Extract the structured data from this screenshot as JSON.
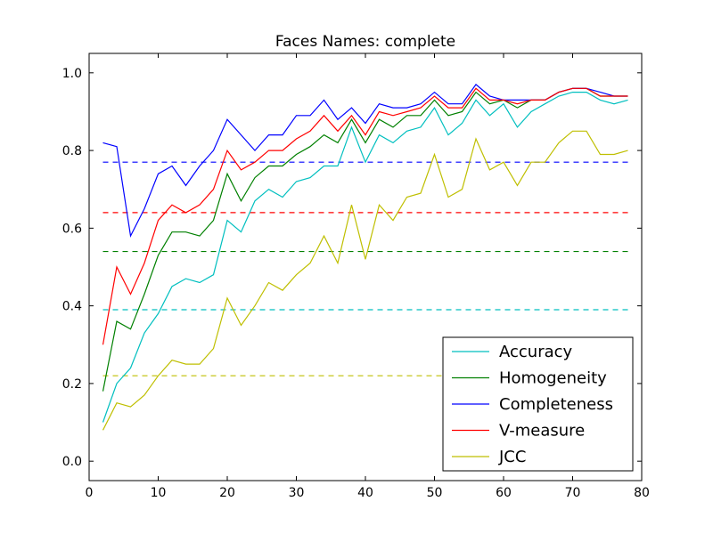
{
  "chart_data": {
    "type": "line",
    "title": "Faces Names: complete",
    "xlabel": "",
    "ylabel": "",
    "xlim": [
      0,
      80
    ],
    "ylim": [
      -0.05,
      1.05
    ],
    "xticks": [
      0,
      10,
      20,
      30,
      40,
      50,
      60,
      70,
      80
    ],
    "yticks": [
      0.0,
      0.2,
      0.4,
      0.6,
      0.8,
      1.0
    ],
    "xtick_labels": [
      "0",
      "10",
      "20",
      "30",
      "40",
      "50",
      "60",
      "70",
      "80"
    ],
    "ytick_labels": [
      "0.0",
      "0.2",
      "0.4",
      "0.6",
      "0.8",
      "1.0"
    ],
    "grid": false,
    "legend_position": "bottom-right",
    "x": [
      2,
      4,
      6,
      8,
      10,
      12,
      14,
      16,
      18,
      20,
      22,
      24,
      26,
      28,
      30,
      32,
      34,
      36,
      38,
      40,
      42,
      44,
      46,
      48,
      50,
      52,
      54,
      56,
      58,
      60,
      62,
      64,
      66,
      68,
      70,
      72,
      74,
      76,
      78
    ],
    "series": [
      {
        "name": "Accuracy",
        "color": "#00bfbf",
        "values": [
          0.1,
          0.2,
          0.24,
          0.33,
          0.38,
          0.45,
          0.47,
          0.46,
          0.48,
          0.62,
          0.59,
          0.67,
          0.7,
          0.68,
          0.72,
          0.73,
          0.76,
          0.76,
          0.86,
          0.77,
          0.84,
          0.82,
          0.85,
          0.86,
          0.91,
          0.84,
          0.87,
          0.93,
          0.89,
          0.92,
          0.86,
          0.9,
          0.92,
          0.94,
          0.95,
          0.95,
          0.93,
          0.92,
          0.93
        ],
        "baseline": 0.39
      },
      {
        "name": "Homogeneity",
        "color": "#008000",
        "values": [
          0.18,
          0.36,
          0.34,
          0.43,
          0.53,
          0.59,
          0.59,
          0.58,
          0.62,
          0.74,
          0.67,
          0.73,
          0.76,
          0.76,
          0.79,
          0.81,
          0.84,
          0.82,
          0.88,
          0.82,
          0.88,
          0.86,
          0.89,
          0.89,
          0.93,
          0.89,
          0.9,
          0.95,
          0.92,
          0.93,
          0.91,
          0.93,
          0.93,
          0.95,
          0.96,
          0.96,
          0.94,
          0.94,
          0.94
        ],
        "baseline": 0.54
      },
      {
        "name": "Completeness",
        "color": "#0000ff",
        "values": [
          0.82,
          0.81,
          0.58,
          0.65,
          0.74,
          0.76,
          0.71,
          0.76,
          0.8,
          0.88,
          0.84,
          0.8,
          0.84,
          0.84,
          0.89,
          0.89,
          0.93,
          0.88,
          0.91,
          0.87,
          0.92,
          0.91,
          0.91,
          0.92,
          0.95,
          0.92,
          0.92,
          0.97,
          0.94,
          0.93,
          0.93,
          0.93,
          0.93,
          0.95,
          0.96,
          0.96,
          0.95,
          0.94,
          0.94
        ],
        "baseline": 0.77
      },
      {
        "name": "V-measure",
        "color": "#ff0000",
        "values": [
          0.3,
          0.5,
          0.43,
          0.51,
          0.62,
          0.66,
          0.64,
          0.66,
          0.7,
          0.8,
          0.75,
          0.77,
          0.8,
          0.8,
          0.83,
          0.85,
          0.89,
          0.85,
          0.89,
          0.84,
          0.9,
          0.89,
          0.9,
          0.91,
          0.94,
          0.91,
          0.91,
          0.96,
          0.93,
          0.93,
          0.92,
          0.93,
          0.93,
          0.95,
          0.96,
          0.96,
          0.94,
          0.94,
          0.94
        ],
        "baseline": 0.64
      },
      {
        "name": "JCC",
        "color": "#bfbf00",
        "values": [
          0.08,
          0.15,
          0.14,
          0.17,
          0.22,
          0.26,
          0.25,
          0.25,
          0.29,
          0.42,
          0.35,
          0.4,
          0.46,
          0.44,
          0.48,
          0.51,
          0.58,
          0.51,
          0.66,
          0.52,
          0.66,
          0.62,
          0.68,
          0.69,
          0.79,
          0.68,
          0.7,
          0.83,
          0.75,
          0.77,
          0.71,
          0.77,
          0.77,
          0.82,
          0.85,
          0.85,
          0.79,
          0.79,
          0.8
        ],
        "baseline": 0.22
      }
    ]
  }
}
